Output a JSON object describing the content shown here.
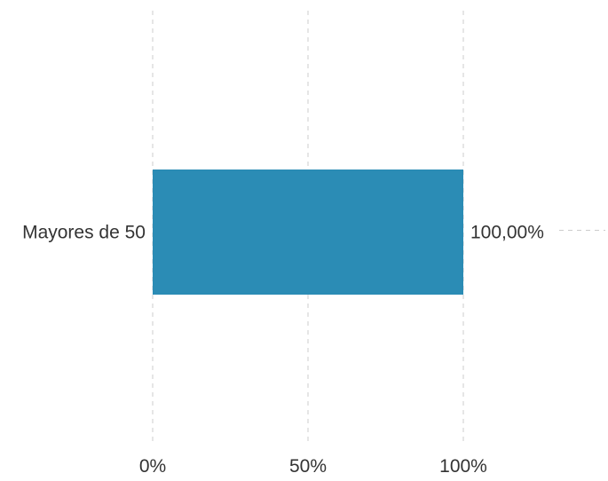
{
  "chart_data": {
    "type": "bar",
    "orientation": "horizontal",
    "categories": [
      "Mayores de 50"
    ],
    "series": [
      {
        "values": [
          100
        ]
      }
    ],
    "data_labels": [
      "100,00%"
    ],
    "x_ticks": [
      0,
      50,
      100
    ],
    "x_tick_labels": [
      "0%",
      "50%",
      "100%"
    ],
    "xlim": [
      0,
      100
    ],
    "grid": "vertical dashed",
    "legend": "none",
    "title": "",
    "xlabel": "",
    "ylabel": ""
  },
  "colors": {
    "bar": "#2b8cb5",
    "grid": "#cccccc",
    "text": "#333333"
  }
}
